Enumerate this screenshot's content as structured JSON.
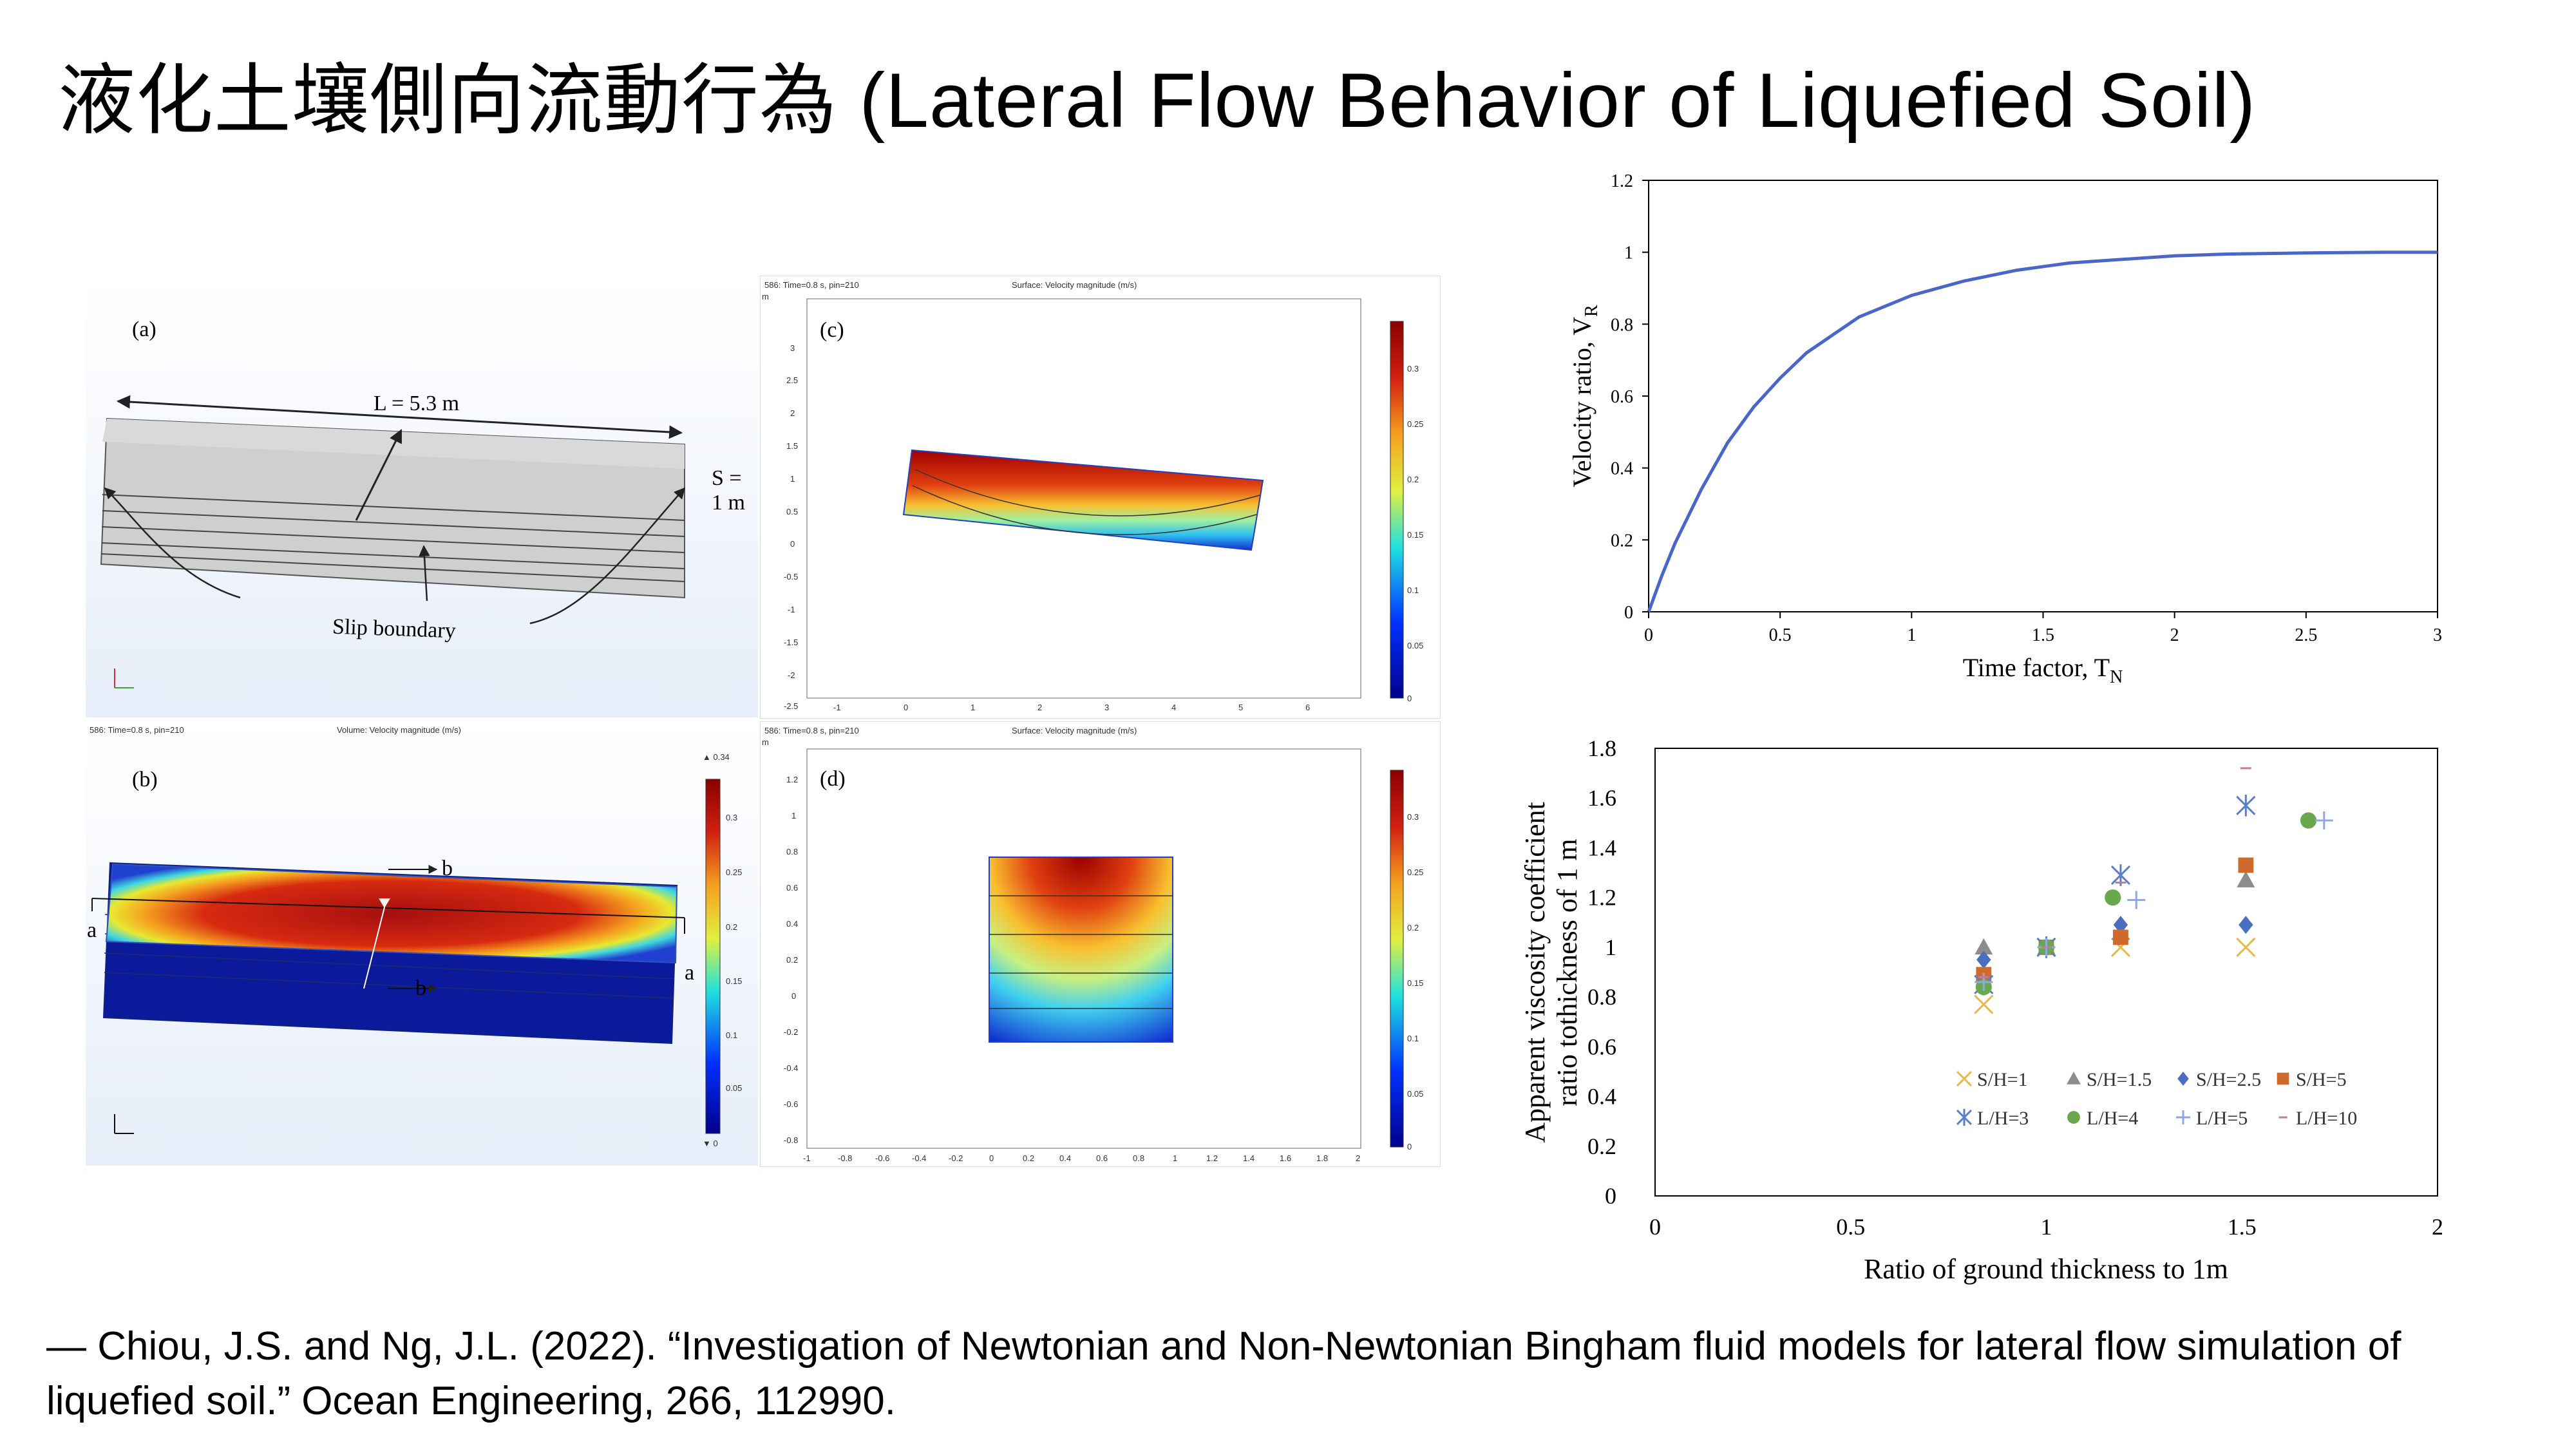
{
  "slide": {
    "title": "液化土壤側向流動行為 (Lateral Flow Behavior of Liquefied Soil)",
    "reference": "— Chiou, J.S. and Ng, J.L. (2022). “Investigation of Newtonian and Non-Newtonian Bingham fluid models for lateral flow simulation of liquefied soil.” Ocean Engineering, 266, 112990."
  },
  "panels": {
    "a": {
      "label": "(a)",
      "length_label": "L = 5.3 m",
      "width_label": "S = 1 m",
      "boundary_label": "Slip boundary"
    },
    "b": {
      "label": "(b)",
      "header_left": "586: Time=0.8 s, pin=210",
      "header_center": "Volume: Velocity magnitude (m/s)",
      "cut_a": "a",
      "cut_b": "b",
      "colorbar_max": "▲ 0.34",
      "colorbar_min": "▼ 0",
      "colorbar_ticks": [
        "0.3",
        "0.25",
        "0.2",
        "0.15",
        "0.1",
        "0.05",
        "0"
      ]
    },
    "c": {
      "label": "(c)",
      "header_left": "586: Time=0.8 s, pin=210",
      "header_center": "Surface: Velocity magnitude (m/s)",
      "unit": "m",
      "y_ticks": [
        "3",
        "2.5",
        "2",
        "1.5",
        "1",
        "0.5",
        "0",
        "-0.5",
        "-1",
        "-1.5",
        "-2",
        "-2.5"
      ],
      "x_ticks": [
        "-1",
        "0",
        "1",
        "2",
        "3",
        "4",
        "5",
        "6"
      ],
      "colorbar_ticks": [
        "0.3",
        "0.25",
        "0.2",
        "0.15",
        "0.1",
        "0.05",
        "0"
      ]
    },
    "d": {
      "label": "(d)",
      "header_left": "586: Time=0.8 s, pin=210",
      "header_center": "Surface: Velocity magnitude (m/s)",
      "unit": "m",
      "y_ticks": [
        "1.2",
        "1",
        "0.8",
        "0.6",
        "0.4",
        "0.2",
        "0",
        "-0.2",
        "-0.4",
        "-0.6",
        "-0.8"
      ],
      "x_ticks": [
        "-1",
        "-0.8",
        "-0.6",
        "-0.4",
        "-0.2",
        "0",
        "0.2",
        "0.4",
        "0.6",
        "0.8",
        "1",
        "1.2",
        "1.4",
        "1.6",
        "1.8",
        "2"
      ],
      "colorbar_ticks": [
        "0.3",
        "0.25",
        "0.2",
        "0.15",
        "0.1",
        "0.05",
        "0"
      ]
    }
  },
  "chart_data": [
    {
      "type": "line",
      "xlabel": "Time factor, T",
      "xlabel_sub": "N",
      "ylabel": "Velocity ratio, V",
      "ylabel_sub": "R",
      "xlim": [
        0,
        3
      ],
      "ylim": [
        0,
        1.2
      ],
      "x_ticks": [
        "0",
        "0.5",
        "1",
        "1.5",
        "2",
        "2.5",
        "3"
      ],
      "y_ticks": [
        "0",
        "0.2",
        "0.4",
        "0.6",
        "0.8",
        "1",
        "1.2"
      ],
      "grid": false,
      "color": "#4a66c8",
      "series": [
        {
          "x": [
            0,
            0.05,
            0.1,
            0.2,
            0.3,
            0.4,
            0.5,
            0.6,
            0.7,
            0.8,
            0.9,
            1.0,
            1.2,
            1.4,
            1.6,
            1.8,
            2.0,
            2.2,
            2.5,
            2.8,
            3.0
          ],
          "y": [
            0,
            0.1,
            0.19,
            0.34,
            0.47,
            0.57,
            0.65,
            0.72,
            0.77,
            0.82,
            0.85,
            0.88,
            0.92,
            0.95,
            0.97,
            0.98,
            0.99,
            0.995,
            0.998,
            1.0,
            1.0
          ]
        }
      ]
    },
    {
      "type": "scatter",
      "xlabel": "Ratio of ground thickness to 1m",
      "ylabel_line1": "Apparent viscosity coefficient",
      "ylabel_line2": "ratio tothickness of 1 m",
      "xlim": [
        0,
        2
      ],
      "ylim": [
        0,
        1.8
      ],
      "x_ticks": [
        "0",
        "0.5",
        "1",
        "1.5",
        "2"
      ],
      "y_ticks": [
        "0",
        "0.2",
        "0.4",
        "0.6",
        "0.8",
        "1",
        "1.2",
        "1.4",
        "1.6",
        "1.8"
      ],
      "grid": false,
      "legend_position": "bottom-right",
      "series": [
        {
          "name": "S/H=1",
          "marker": "x",
          "color": "#e8b84a",
          "points": [
            [
              0.84,
              0.77
            ],
            [
              1.0,
              1.0
            ],
            [
              1.19,
              1.0
            ],
            [
              1.51,
              1.0
            ]
          ]
        },
        {
          "name": "S/H=1.5",
          "marker": "triangle",
          "color": "#8c8c8c",
          "points": [
            [
              0.84,
              1.0
            ],
            [
              1.0,
              1.0
            ],
            [
              1.19,
              1.06
            ],
            [
              1.51,
              1.27
            ]
          ]
        },
        {
          "name": "S/H=2.5",
          "marker": "diamond",
          "color": "#4a6fc0",
          "points": [
            [
              0.84,
              0.95
            ],
            [
              1.0,
              1.0
            ],
            [
              1.19,
              1.09
            ],
            [
              1.51,
              1.09
            ]
          ]
        },
        {
          "name": "S/H=5",
          "marker": "square",
          "color": "#d06a2a",
          "points": [
            [
              0.84,
              0.89
            ],
            [
              1.0,
              1.0
            ],
            [
              1.19,
              1.04
            ],
            [
              1.51,
              1.33
            ]
          ]
        },
        {
          "name": "L/H=3",
          "marker": "star",
          "color": "#5a7ec8",
          "points": [
            [
              0.84,
              0.85
            ],
            [
              1.0,
              1.0
            ],
            [
              1.19,
              1.29
            ],
            [
              1.51,
              1.57
            ]
          ]
        },
        {
          "name": "L/H=4",
          "marker": "circle",
          "color": "#6aa84f",
          "points": [
            [
              0.84,
              0.84
            ],
            [
              1.0,
              1.0
            ],
            [
              1.17,
              1.2
            ],
            [
              1.67,
              1.51
            ]
          ]
        },
        {
          "name": "L/H=5",
          "marker": "plus",
          "color": "#8fa8e0",
          "points": [
            [
              0.84,
              0.86
            ],
            [
              1.0,
              1.0
            ],
            [
              1.23,
              1.19
            ],
            [
              1.71,
              1.51
            ]
          ]
        },
        {
          "name": "L/H=10",
          "marker": "dash",
          "color": "#c77aa0",
          "points": [
            [
              0.84,
              0.88
            ],
            [
              1.0,
              1.0
            ],
            [
              1.19,
              1.26
            ],
            [
              1.51,
              1.72
            ]
          ]
        }
      ]
    }
  ]
}
